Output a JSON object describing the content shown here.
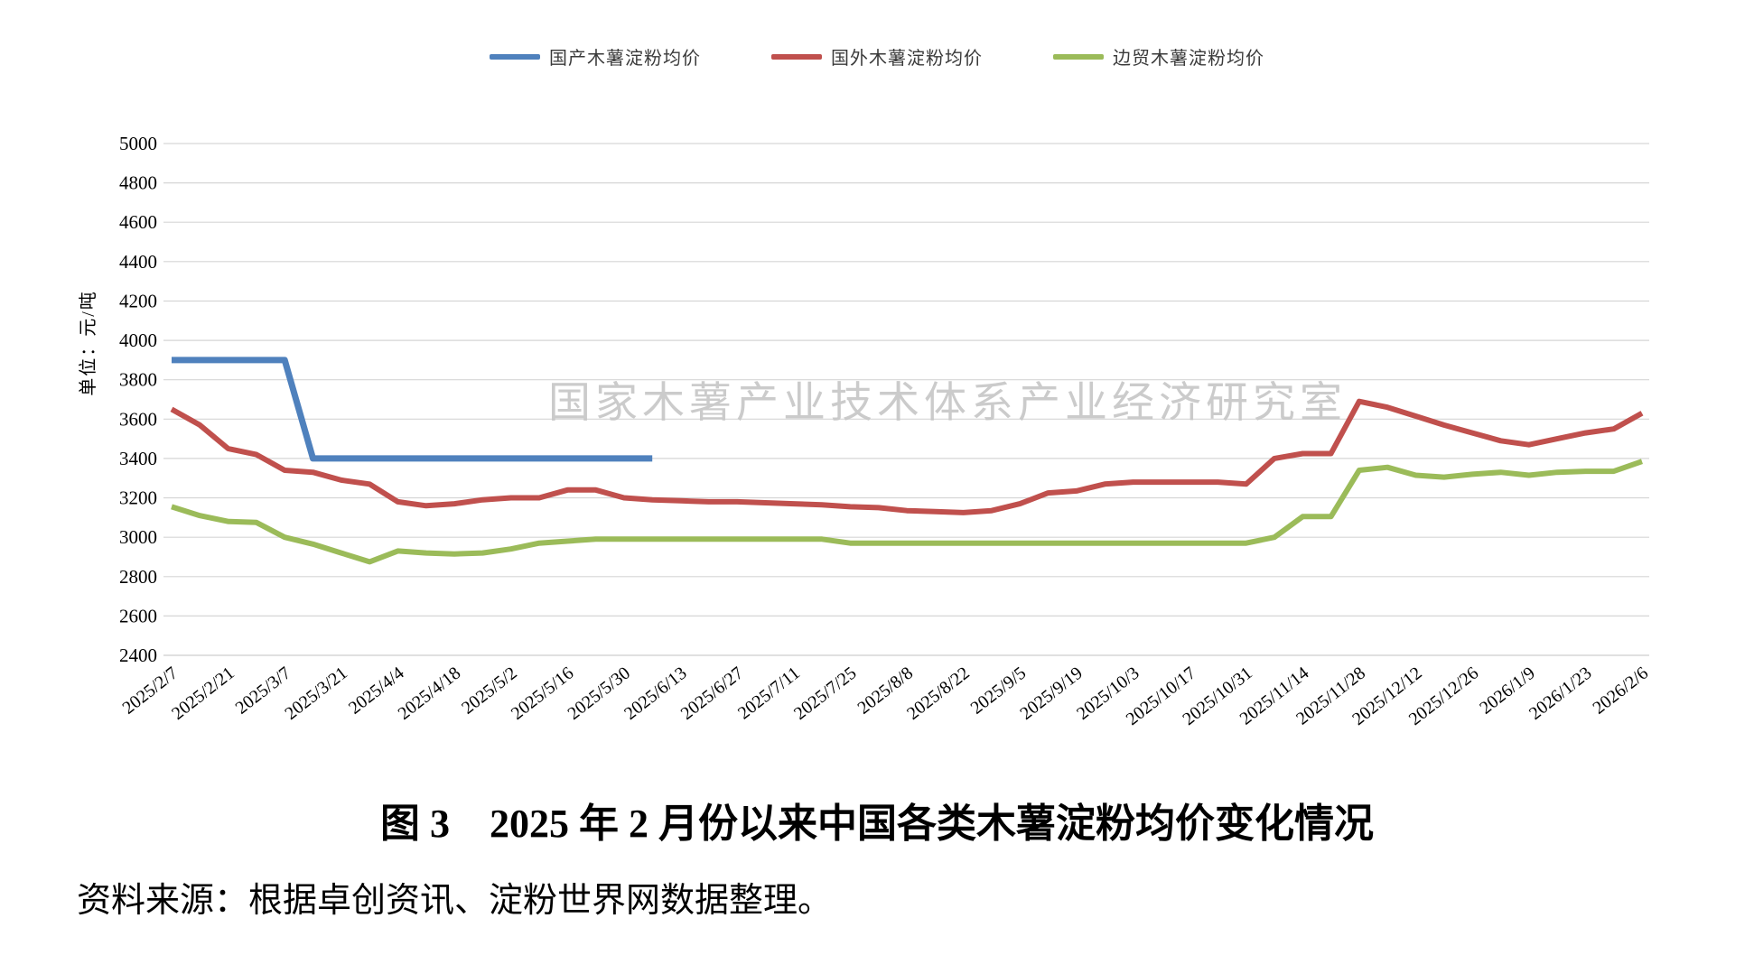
{
  "chart_data": {
    "type": "line",
    "title": "图 3　2025 年 2 月份以来中国各类木薯淀粉均价变化情况",
    "source_note": "资料来源：根据卓创资讯、淀粉世界网数据整理。",
    "ylabel": "单位：元/吨",
    "watermark": "国家木薯产业技术体系产业经济研究室",
    "ylim": [
      2400,
      5000
    ],
    "ytick_step": 200,
    "grid": true,
    "grid_color": "#d6d6d6",
    "legend_position": "top",
    "x": [
      "2025/2/7",
      "2025/2/14",
      "2025/2/21",
      "2025/2/28",
      "2025/3/7",
      "2025/3/14",
      "2025/3/21",
      "2025/3/28",
      "2025/4/4",
      "2025/4/11",
      "2025/4/18",
      "2025/4/25",
      "2025/5/2",
      "2025/5/9",
      "2025/5/16",
      "2025/5/23",
      "2025/5/30",
      "2025/6/6",
      "2025/6/13",
      "2025/6/20",
      "2025/6/27",
      "2025/7/4",
      "2025/7/11",
      "2025/7/18",
      "2025/7/25",
      "2025/8/1",
      "2025/8/8",
      "2025/8/15",
      "2025/8/22",
      "2025/8/29",
      "2025/9/5",
      "2025/9/12",
      "2025/9/19",
      "2025/9/26",
      "2025/10/3",
      "2025/10/10",
      "2025/10/17",
      "2025/10/24",
      "2025/10/31",
      "2025/11/7",
      "2025/11/14",
      "2025/11/21",
      "2025/11/28",
      "2025/12/5",
      "2025/12/12",
      "2025/12/19",
      "2025/12/26",
      "2026/1/2",
      "2026/1/9",
      "2026/1/16",
      "2026/1/23",
      "2026/1/30",
      "2026/2/6"
    ],
    "xtick_labels": [
      "2025/2/7",
      "2025/2/21",
      "2025/3/7",
      "2025/3/21",
      "2025/4/4",
      "2025/4/18",
      "2025/5/2",
      "2025/5/16",
      "2025/5/30",
      "2025/6/13",
      "2025/6/27",
      "2025/7/11",
      "2025/7/25",
      "2025/8/8",
      "2025/8/22",
      "2025/9/5",
      "2025/9/19",
      "2025/10/3",
      "2025/10/17",
      "2025/10/31",
      "2025/11/14",
      "2025/11/28",
      "2025/12/12",
      "2025/12/26",
      "2026/1/9",
      "2026/1/23",
      "2026/2/6"
    ],
    "series": [
      {
        "name": "国产木薯淀粉均价",
        "color": "#4F81BD",
        "line_width": 7,
        "values": [
          3900,
          3900,
          3900,
          3900,
          3900,
          3400,
          3400,
          3400,
          3400,
          3400,
          3400,
          3400,
          3400,
          3400,
          3400,
          3400,
          3400,
          3400,
          null,
          null,
          null,
          null,
          null,
          null,
          null,
          null,
          null,
          null,
          null,
          null,
          null,
          null,
          null,
          null,
          null,
          null,
          null,
          null,
          null,
          null,
          null,
          null,
          null,
          null,
          null,
          null,
          null,
          null,
          null,
          null,
          null,
          null,
          null
        ]
      },
      {
        "name": "国外木薯淀粉均价",
        "color": "#C0504D",
        "line_width": 6,
        "values": [
          3650,
          3570,
          3450,
          3420,
          3340,
          3330,
          3290,
          3270,
          3180,
          3160,
          3170,
          3190,
          3200,
          3200,
          3240,
          3240,
          3200,
          3190,
          3185,
          3180,
          3180,
          3175,
          3170,
          3165,
          3155,
          3150,
          3135,
          3130,
          3125,
          3135,
          3170,
          3225,
          3235,
          3270,
          3280,
          3280,
          3280,
          3280,
          3270,
          3400,
          3425,
          3425,
          3690,
          3660,
          3615,
          3570,
          3530,
          3490,
          3470,
          3500,
          3530,
          3550,
          3630
        ]
      },
      {
        "name": "边贸木薯淀粉均价",
        "color": "#9BBB59",
        "line_width": 6,
        "values": [
          3155,
          3110,
          3080,
          3075,
          3000,
          2965,
          2920,
          2875,
          2930,
          2920,
          2915,
          2920,
          2940,
          2970,
          2980,
          2990,
          2990,
          2990,
          2990,
          2990,
          2990,
          2990,
          2990,
          2990,
          2970,
          2970,
          2970,
          2970,
          2970,
          2970,
          2970,
          2970,
          2970,
          2970,
          2970,
          2970,
          2970,
          2970,
          2970,
          3000,
          3105,
          3105,
          3340,
          3355,
          3315,
          3305,
          3320,
          3330,
          3315,
          3330,
          3335,
          3335,
          3385
        ]
      }
    ]
  }
}
